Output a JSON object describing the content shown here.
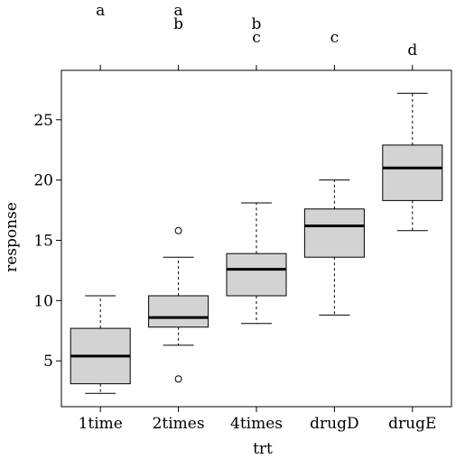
{
  "chart_data": {
    "type": "boxplot",
    "title": "",
    "xlabel": "trt",
    "ylabel": "response",
    "ylim": [
      1.2,
      29.1
    ],
    "yticks": [
      5,
      10,
      15,
      20,
      25
    ],
    "categories": [
      "1time",
      "2times",
      "4times",
      "drugD",
      "drugE"
    ],
    "boxes": [
      {
        "category": "1time",
        "whisker_low": 2.3,
        "q1": 3.1,
        "median": 5.4,
        "q3": 7.7,
        "whisker_high": 10.4,
        "outliers": []
      },
      {
        "category": "2times",
        "whisker_low": 6.3,
        "q1": 7.8,
        "median": 8.6,
        "q3": 10.4,
        "whisker_high": 13.6,
        "outliers": [
          3.5,
          15.8
        ]
      },
      {
        "category": "4times",
        "whisker_low": 8.1,
        "q1": 10.4,
        "median": 12.6,
        "q3": 13.9,
        "whisker_high": 18.1,
        "outliers": []
      },
      {
        "category": "drugD",
        "whisker_low": 8.8,
        "q1": 13.6,
        "median": 16.2,
        "q3": 17.6,
        "whisker_high": 20.0,
        "outliers": []
      },
      {
        "category": "drugE",
        "whisker_low": 15.8,
        "q1": 18.3,
        "median": 21.0,
        "q3": 22.9,
        "whisker_high": 27.2,
        "outliers": []
      }
    ],
    "group_letters": [
      [
        "a"
      ],
      [
        "a",
        "b"
      ],
      [
        "b",
        "c"
      ],
      [
        "c"
      ],
      [
        "d"
      ]
    ],
    "box_fill": "#d3d3d3",
    "grid": false
  }
}
